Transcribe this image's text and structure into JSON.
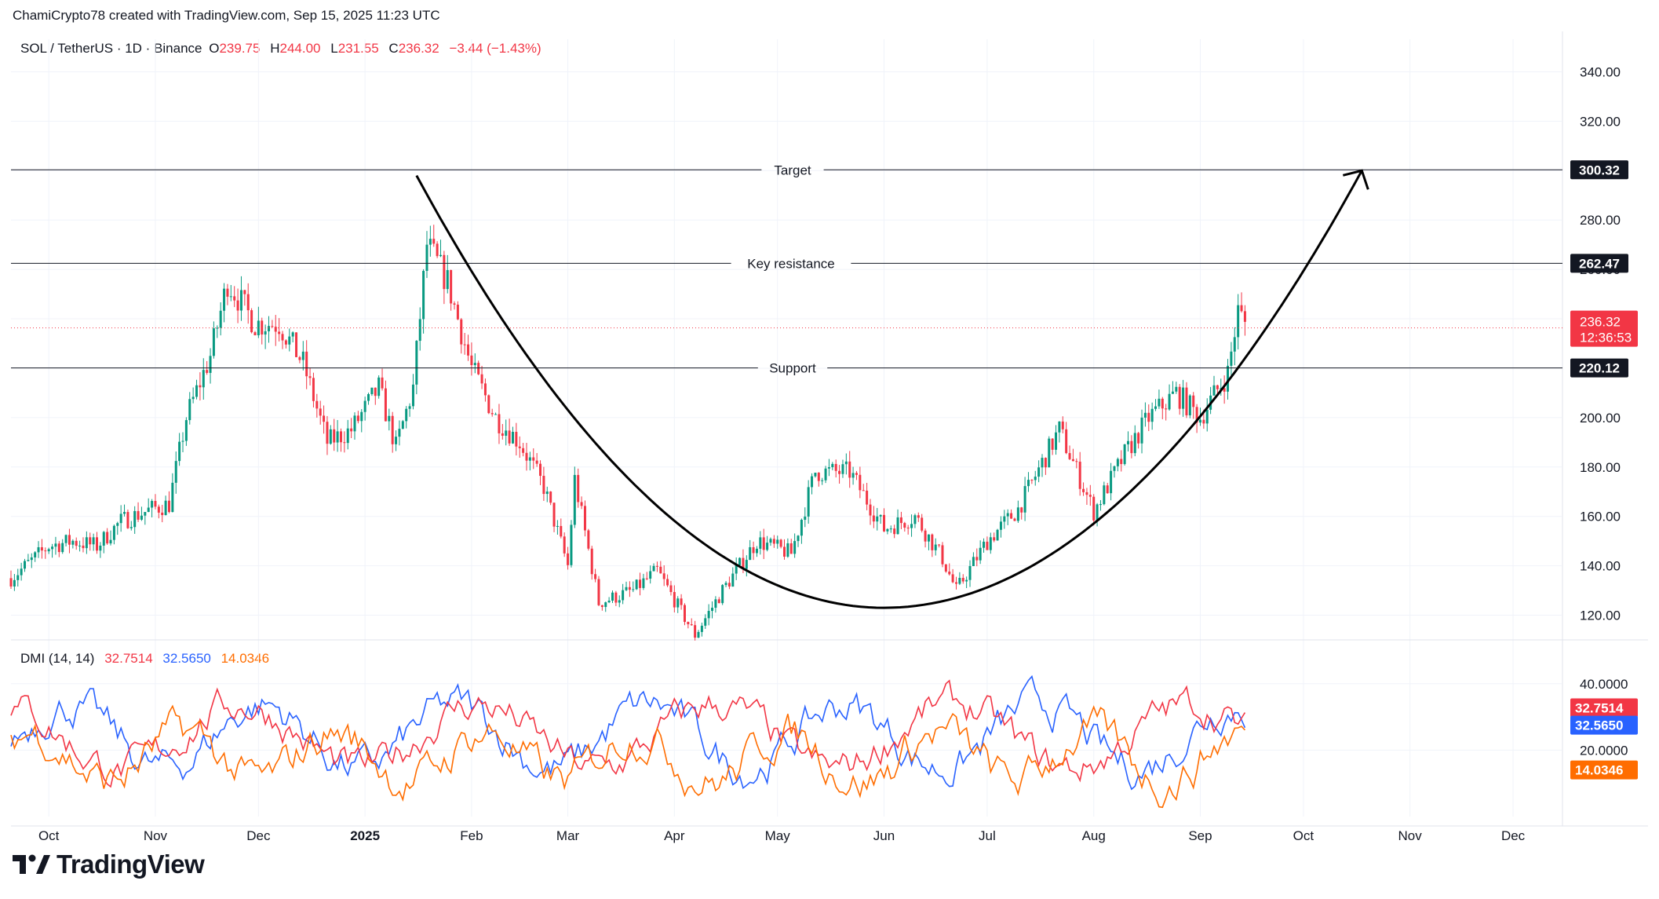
{
  "header": {
    "credit": "ChamiCrypto78 created with TradingView.com, Sep 15, 2025 11:23 UTC",
    "symbol": "SOL / TetherUS · 1D · Binance",
    "o_label": "O",
    "o_value": "239.75",
    "h_label": "H",
    "h_value": "244.00",
    "l_label": "L",
    "l_value": "231.55",
    "c_label": "C",
    "c_value": "236.32",
    "change": "−3.44 (−1.43%)"
  },
  "brand": {
    "name": "TradingView"
  },
  "colors": {
    "up": "#089981",
    "down": "#f23645",
    "price_badge": "#f23645",
    "dmi_plus": "#f23645",
    "dmi_minus": "#2962ff",
    "adx": "#ff6d00",
    "level_line": "#131722",
    "grid": "#f0f3fa"
  },
  "levels": [
    {
      "label": "Target",
      "value": 300.32,
      "badge": "300.32"
    },
    {
      "label": "Key resistance",
      "value": 262.47,
      "badge": "262.47"
    },
    {
      "label": "Support",
      "value": 220.12,
      "badge": "220.12"
    }
  ],
  "current_price": {
    "value": 236.32,
    "label": "236.32",
    "countdown": "12:36:53"
  },
  "dmi": {
    "title": "DMI (14, 14)",
    "plus_di": "32.7514",
    "minus_di": "32.5650",
    "adx": "14.0346",
    "y_ticks": [
      "40.0000",
      "20.0000"
    ]
  },
  "chart_data": {
    "type": "candlestick",
    "title": "SOL / TetherUS · 1D · Binance",
    "price_axis": {
      "range": [
        110,
        350
      ],
      "ticks": [
        120,
        140,
        160,
        180,
        200,
        220,
        240,
        260,
        280,
        300,
        320,
        340
      ],
      "tick_labels": [
        "120.00",
        "140.00",
        "160.00",
        "180.00",
        "200.00",
        "220.00",
        "240.00",
        "260.00",
        "280.00",
        "300.00",
        "320.00",
        "340.00"
      ]
    },
    "time_axis": {
      "labels": [
        "Oct",
        "Nov",
        "Dec",
        "2025",
        "Feb",
        "Mar",
        "Apr",
        "May",
        "Jun",
        "Jul",
        "Aug",
        "Sep",
        "Oct",
        "Nov",
        "Dec"
      ]
    },
    "price_path": [
      {
        "t": "2024-09-20",
        "close": 135
      },
      {
        "t": "2024-10-01",
        "close": 148
      },
      {
        "t": "2024-10-08",
        "close": 150
      },
      {
        "t": "2024-10-15",
        "close": 148
      },
      {
        "t": "2024-10-22",
        "close": 158
      },
      {
        "t": "2024-10-31",
        "close": 163
      },
      {
        "t": "2024-11-05",
        "close": 165
      },
      {
        "t": "2024-11-10",
        "close": 200
      },
      {
        "t": "2024-11-17",
        "close": 225
      },
      {
        "t": "2024-11-22",
        "close": 255
      },
      {
        "t": "2024-11-30",
        "close": 238
      },
      {
        "t": "2024-12-07",
        "close": 238
      },
      {
        "t": "2024-12-14",
        "close": 222
      },
      {
        "t": "2024-12-21",
        "close": 190
      },
      {
        "t": "2024-12-28",
        "close": 195
      },
      {
        "t": "2025-01-05",
        "close": 212
      },
      {
        "t": "2025-01-10",
        "close": 188
      },
      {
        "t": "2025-01-15",
        "close": 212
      },
      {
        "t": "2025-01-19",
        "close": 270
      },
      {
        "t": "2025-01-25",
        "close": 255
      },
      {
        "t": "2025-02-01",
        "close": 220
      },
      {
        "t": "2025-02-08",
        "close": 200
      },
      {
        "t": "2025-02-15",
        "close": 190
      },
      {
        "t": "2025-02-22",
        "close": 172
      },
      {
        "t": "2025-03-01",
        "close": 140
      },
      {
        "t": "2025-03-03",
        "close": 175
      },
      {
        "t": "2025-03-10",
        "close": 125
      },
      {
        "t": "2025-03-20",
        "close": 130
      },
      {
        "t": "2025-03-27",
        "close": 138
      },
      {
        "t": "2025-04-07",
        "close": 112
      },
      {
        "t": "2025-04-15",
        "close": 130
      },
      {
        "t": "2025-04-25",
        "close": 150
      },
      {
        "t": "2025-05-05",
        "close": 145
      },
      {
        "t": "2025-05-12",
        "close": 178
      },
      {
        "t": "2025-05-22",
        "close": 178
      },
      {
        "t": "2025-06-01",
        "close": 155
      },
      {
        "t": "2025-06-10",
        "close": 160
      },
      {
        "t": "2025-06-18",
        "close": 143
      },
      {
        "t": "2025-06-22",
        "close": 130
      },
      {
        "t": "2025-07-01",
        "close": 150
      },
      {
        "t": "2025-07-10",
        "close": 163
      },
      {
        "t": "2025-07-22",
        "close": 195
      },
      {
        "t": "2025-08-01",
        "close": 162
      },
      {
        "t": "2025-08-10",
        "close": 185
      },
      {
        "t": "2025-08-17",
        "close": 200
      },
      {
        "t": "2025-08-25",
        "close": 210
      },
      {
        "t": "2025-09-01",
        "close": 200
      },
      {
        "t": "2025-09-09",
        "close": 218
      },
      {
        "t": "2025-09-12",
        "close": 243
      },
      {
        "t": "2025-09-15",
        "close": 236
      }
    ],
    "cup_curve": {
      "start": {
        "t": "2025-01-16",
        "price": 298
      },
      "bottom": {
        "t": "2025-06-01",
        "price": 123
      },
      "end": {
        "t": "2025-10-18",
        "price": 300
      }
    }
  }
}
